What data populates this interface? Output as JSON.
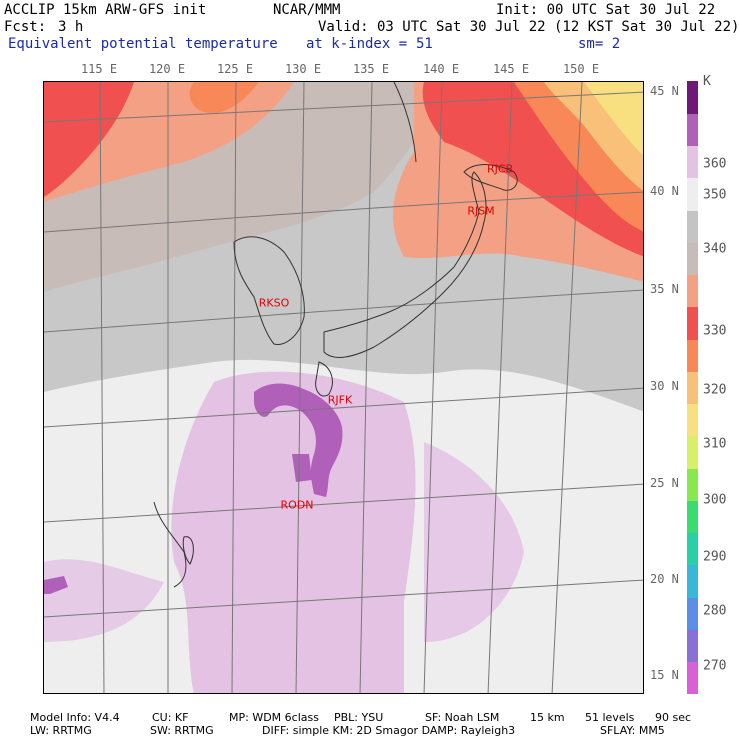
{
  "header": {
    "model_line": "ACCLIP 15km ARW-GFS init",
    "org": "NCAR/MMM",
    "init": "Init: 00 UTC Sat 30 Jul 22",
    "fcst_label": "Fcst:",
    "fcst_value": "3 h",
    "valid": "Valid: 03 UTC Sat 30 Jul 22 (12 KST Sat 30 Jul 22)",
    "field": "Equivalent potential temperature",
    "level": "at k-index =",
    "level_value": "51",
    "smooth": "sm= 2"
  },
  "longitude_labels": [
    "115 E",
    "120 E",
    "125 E",
    "130 E",
    "135 E",
    "140 E",
    "145 E",
    "150 E"
  ],
  "latitude_labels": [
    "45 N",
    "40 N",
    "35 N",
    "30 N",
    "25 N",
    "20 N",
    "15 N"
  ],
  "stations": [
    {
      "id": "RJCB"
    },
    {
      "id": "RJSM"
    },
    {
      "id": "RKSO"
    },
    {
      "id": "RJFK"
    },
    {
      "id": "RODN"
    }
  ],
  "colorbar": {
    "unit": "K",
    "ticks": [
      "360",
      "350",
      "340",
      "330",
      "320",
      "310",
      "300",
      "290",
      "280",
      "270"
    ],
    "colors": [
      "#d960d9",
      "#8a6fd6",
      "#5c8ee8",
      "#38b8d8",
      "#28d0a8",
      "#38dc70",
      "#88e850",
      "#d8f068",
      "#f8e080",
      "#f8c078",
      "#f88858",
      "#f05050",
      "#f4a084",
      "#c8bcb8",
      "#c4c4c4",
      "#eeeeee",
      "#e4c2e4",
      "#b060b8",
      "#701878"
    ]
  },
  "footer": {
    "line1": [
      "Model Info: V4.4",
      "CU: KF",
      "MP: WDM 6class",
      "PBL: YSU",
      "SF: Noah LSM",
      "15 km",
      "51 levels",
      "90 sec"
    ],
    "line2": [
      "LW: RRTMG",
      "SW: RRTMG",
      "DIFF: simple KM: 2D Smagor DAMP: Rayleigh3",
      "SFLAY: MM5"
    ]
  }
}
